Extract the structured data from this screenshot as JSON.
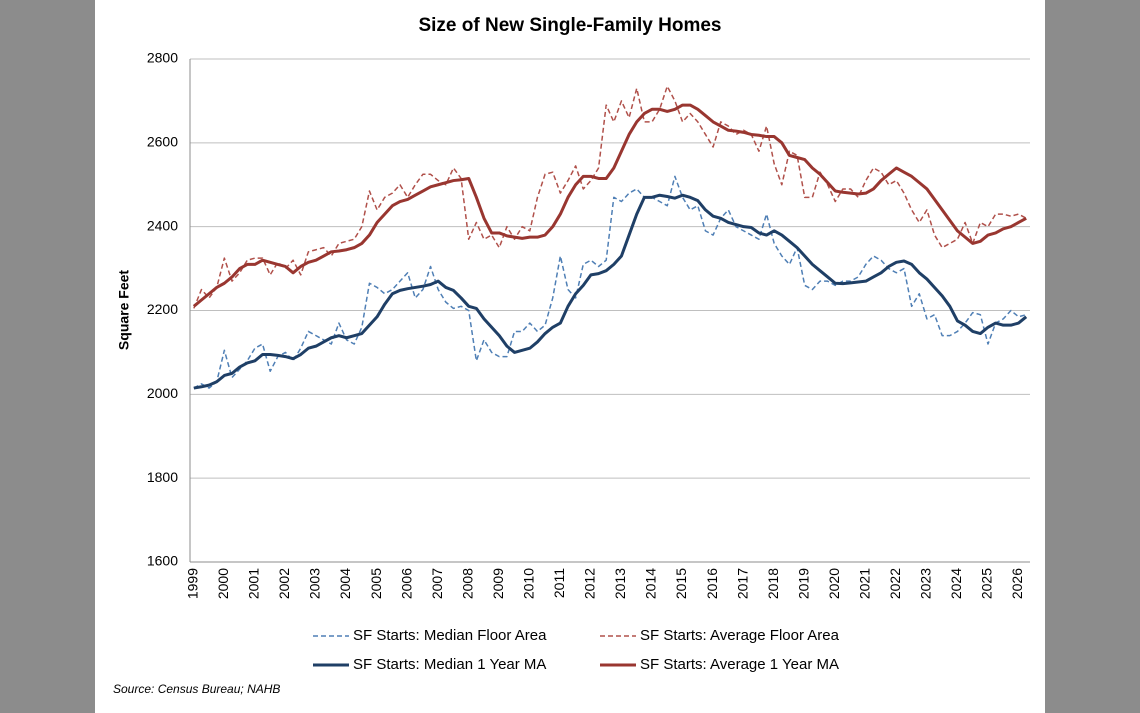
{
  "chart_data": {
    "type": "line",
    "title": "Size of New Single-Family Homes",
    "y_label": "Square Feet",
    "source": "Source: Census Bureau; NAHB",
    "categories": [
      "1999",
      null,
      null,
      null,
      "2000",
      null,
      null,
      null,
      "2001",
      null,
      null,
      null,
      "2002",
      null,
      null,
      null,
      "2003",
      null,
      null,
      null,
      "2004",
      null,
      null,
      null,
      "2005",
      null,
      null,
      null,
      "2006",
      null,
      null,
      null,
      "2007",
      null,
      null,
      null,
      "2008",
      null,
      null,
      null,
      "2009",
      null,
      null,
      null,
      "2010",
      null,
      null,
      null,
      "2011",
      null,
      null,
      null,
      "2012",
      null,
      null,
      null,
      "2013",
      null,
      null,
      null,
      "2014",
      null,
      null,
      null,
      "2015",
      null,
      null,
      null,
      "2016",
      null,
      null,
      null,
      "2017",
      null,
      null,
      null,
      "2018",
      null,
      null,
      null,
      "2019",
      null,
      null,
      null,
      "2020",
      null,
      null,
      null,
      "2021",
      null,
      null,
      null,
      "2022",
      null,
      null,
      null,
      "2023",
      null,
      null,
      null,
      "2024",
      null,
      null,
      null,
      "2025",
      null,
      null,
      null,
      "2026",
      null
    ],
    "series": [
      {
        "name": "SF Starts: Median Floor Area",
        "color": "#4f7fb5",
        "dashed": true,
        "values": [
          2015,
          2025,
          2015,
          2030,
          2105,
          2040,
          2060,
          2080,
          2110,
          2120,
          2055,
          2090,
          2100,
          2080,
          2110,
          2150,
          2140,
          2130,
          2120,
          2170,
          2130,
          2120,
          2160,
          2265,
          2255,
          2240,
          2250,
          2270,
          2290,
          2230,
          2250,
          2305,
          2250,
          2220,
          2205,
          2210,
          2200,
          2080,
          2130,
          2100,
          2090,
          2090,
          2150,
          2150,
          2170,
          2150,
          2165,
          2230,
          2330,
          2250,
          2230,
          2310,
          2320,
          2305,
          2320,
          2470,
          2460,
          2480,
          2490,
          2470,
          2470,
          2460,
          2450,
          2520,
          2470,
          2440,
          2450,
          2390,
          2380,
          2420,
          2440,
          2400,
          2390,
          2380,
          2370,
          2430,
          2360,
          2330,
          2310,
          2350,
          2260,
          2250,
          2270,
          2270,
          2260,
          2270,
          2270,
          2280,
          2310,
          2330,
          2320,
          2300,
          2290,
          2300,
          2210,
          2240,
          2180,
          2190,
          2140,
          2140,
          2150,
          2170,
          2195,
          2190,
          2120,
          2170,
          2180,
          2200,
          2185,
          2190
        ]
      },
      {
        "name": "SF Starts: Average Floor Area",
        "color": "#b0504a",
        "dashed": true,
        "values": [
          2205,
          2250,
          2230,
          2255,
          2325,
          2270,
          2290,
          2320,
          2325,
          2325,
          2285,
          2315,
          2300,
          2320,
          2285,
          2340,
          2345,
          2350,
          2330,
          2360,
          2365,
          2370,
          2400,
          2485,
          2440,
          2470,
          2480,
          2500,
          2470,
          2500,
          2525,
          2525,
          2510,
          2500,
          2540,
          2515,
          2370,
          2410,
          2370,
          2380,
          2350,
          2400,
          2370,
          2400,
          2390,
          2470,
          2525,
          2530,
          2480,
          2510,
          2545,
          2490,
          2510,
          2540,
          2690,
          2650,
          2700,
          2660,
          2730,
          2650,
          2650,
          2680,
          2735,
          2700,
          2650,
          2670,
          2650,
          2620,
          2590,
          2650,
          2640,
          2620,
          2630,
          2620,
          2580,
          2640,
          2550,
          2500,
          2580,
          2570,
          2470,
          2470,
          2530,
          2500,
          2460,
          2490,
          2490,
          2470,
          2510,
          2540,
          2530,
          2500,
          2510,
          2480,
          2440,
          2410,
          2440,
          2380,
          2350,
          2360,
          2370,
          2410,
          2360,
          2410,
          2400,
          2430,
          2430,
          2425,
          2430,
          2420
        ]
      },
      {
        "name": "SF Starts: Median 1 Year MA",
        "color": "#1f3f66",
        "dashed": false,
        "values": [
          2015,
          2018,
          2022,
          2030,
          2045,
          2050,
          2065,
          2075,
          2080,
          2095,
          2095,
          2093,
          2090,
          2085,
          2095,
          2110,
          2115,
          2125,
          2135,
          2140,
          2135,
          2140,
          2145,
          2165,
          2185,
          2215,
          2240,
          2248,
          2252,
          2255,
          2258,
          2262,
          2270,
          2255,
          2248,
          2230,
          2210,
          2205,
          2180,
          2160,
          2140,
          2115,
          2100,
          2105,
          2110,
          2125,
          2145,
          2160,
          2170,
          2210,
          2240,
          2260,
          2285,
          2288,
          2295,
          2310,
          2330,
          2380,
          2430,
          2470,
          2470,
          2475,
          2472,
          2468,
          2475,
          2470,
          2462,
          2440,
          2425,
          2420,
          2410,
          2405,
          2400,
          2398,
          2385,
          2380,
          2390,
          2380,
          2365,
          2350,
          2330,
          2310,
          2295,
          2280,
          2265,
          2264,
          2266,
          2268,
          2270,
          2280,
          2290,
          2305,
          2315,
          2318,
          2310,
          2290,
          2275,
          2255,
          2235,
          2210,
          2175,
          2165,
          2150,
          2145,
          2160,
          2170,
          2165,
          2165,
          2170,
          2185
        ]
      },
      {
        "name": "SF Starts: Average 1 Year MA",
        "color": "#993630",
        "dashed": false,
        "values": [
          2210,
          2225,
          2240,
          2255,
          2265,
          2280,
          2300,
          2310,
          2310,
          2320,
          2315,
          2310,
          2305,
          2290,
          2305,
          2315,
          2320,
          2330,
          2340,
          2342,
          2345,
          2350,
          2360,
          2380,
          2410,
          2430,
          2450,
          2460,
          2465,
          2475,
          2485,
          2495,
          2500,
          2505,
          2510,
          2512,
          2515,
          2470,
          2420,
          2385,
          2385,
          2378,
          2375,
          2372,
          2375,
          2375,
          2380,
          2400,
          2430,
          2470,
          2500,
          2520,
          2520,
          2515,
          2515,
          2540,
          2580,
          2620,
          2650,
          2670,
          2680,
          2680,
          2675,
          2680,
          2690,
          2690,
          2680,
          2665,
          2650,
          2640,
          2630,
          2628,
          2625,
          2620,
          2618,
          2615,
          2615,
          2600,
          2570,
          2565,
          2560,
          2540,
          2525,
          2505,
          2485,
          2482,
          2480,
          2478,
          2480,
          2490,
          2510,
          2525,
          2540,
          2530,
          2520,
          2505,
          2490,
          2465,
          2440,
          2415,
          2390,
          2375,
          2360,
          2365,
          2380,
          2385,
          2395,
          2400,
          2410,
          2420
        ]
      }
    ],
    "ylim": [
      1600,
      2800
    ],
    "yticks": [
      1600,
      1800,
      2000,
      2200,
      2400,
      2600,
      2800
    ],
    "grid": true
  }
}
